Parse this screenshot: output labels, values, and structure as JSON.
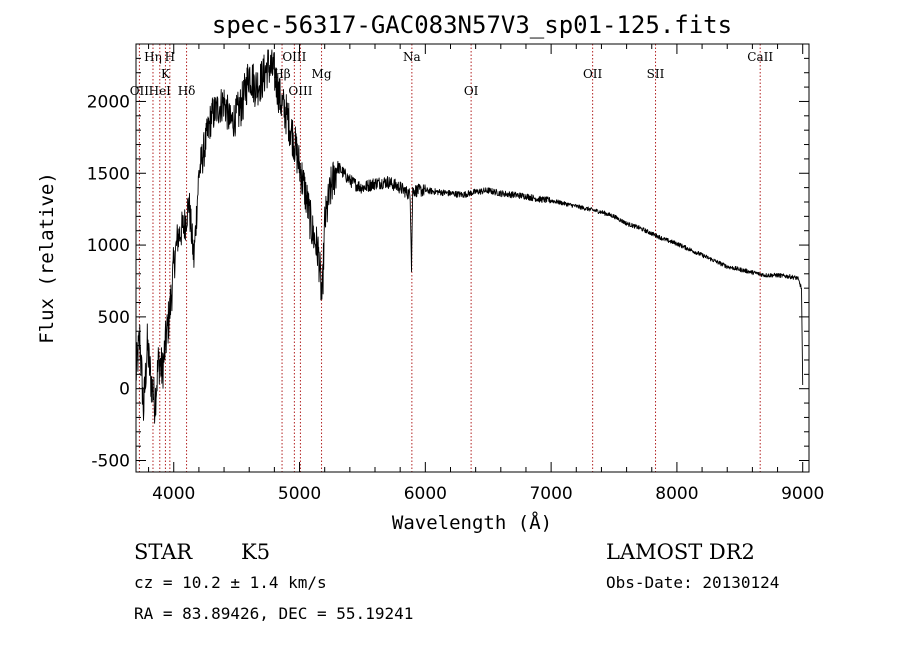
{
  "chart_data": {
    "type": "line",
    "title": "spec-56317-GAC083N57V3_sp01-125.fits",
    "xlabel": "Wavelength (Å)",
    "ylabel": "Flux (relative)",
    "xlim": [
      3700,
      9050
    ],
    "ylim": [
      -580,
      2400
    ],
    "xticks": [
      4000,
      5000,
      6000,
      7000,
      8000,
      9000
    ],
    "yticks": [
      -500,
      0,
      500,
      1000,
      1500,
      2000
    ],
    "series": [
      {
        "name": "spectrum",
        "x": [
          3700,
          3730,
          3760,
          3790,
          3820,
          3850,
          3880,
          3910,
          3940,
          3970,
          4000,
          4030,
          4060,
          4090,
          4120,
          4160,
          4200,
          4250,
          4300,
          4350,
          4400,
          4450,
          4500,
          4550,
          4600,
          4650,
          4700,
          4750,
          4800,
          4850,
          4900,
          4950,
          5000,
          5050,
          5100,
          5150,
          5180,
          5200,
          5250,
          5300,
          5350,
          5400,
          5450,
          5500,
          5600,
          5700,
          5800,
          5880,
          5890,
          5900,
          5950,
          6000,
          6100,
          6200,
          6300,
          6400,
          6500,
          6600,
          6700,
          6800,
          6900,
          7000,
          7100,
          7200,
          7300,
          7400,
          7500,
          7600,
          7700,
          7800,
          7900,
          8000,
          8100,
          8200,
          8300,
          8400,
          8500,
          8600,
          8700,
          8800,
          8900,
          8960,
          8990,
          9000
        ],
        "y": [
          100,
          350,
          -150,
          300,
          50,
          -100,
          200,
          120,
          350,
          550,
          850,
          1050,
          1100,
          1150,
          1300,
          900,
          1500,
          1700,
          1900,
          1950,
          2000,
          1850,
          1900,
          2000,
          2200,
          2100,
          2150,
          2250,
          2200,
          2000,
          1900,
          1750,
          1550,
          1350,
          1100,
          950,
          600,
          1150,
          1400,
          1550,
          1500,
          1450,
          1420,
          1400,
          1430,
          1440,
          1400,
          1350,
          850,
          1380,
          1380,
          1380,
          1370,
          1360,
          1350,
          1370,
          1380,
          1360,
          1350,
          1340,
          1320,
          1310,
          1290,
          1270,
          1250,
          1230,
          1200,
          1150,
          1120,
          1080,
          1040,
          1010,
          970,
          930,
          890,
          850,
          830,
          810,
          790,
          790,
          780,
          770,
          700,
          20
        ]
      }
    ],
    "lines": [
      {
        "label": "OII",
        "x": 3727,
        "level": 3
      },
      {
        "label": "Hη",
        "x": 3835,
        "level": 1
      },
      {
        "label": "HeI",
        "x": 3889,
        "level": 3
      },
      {
        "label": "K",
        "x": 3934,
        "level": 2
      },
      {
        "label": "H",
        "x": 3969,
        "level": 1
      },
      {
        "label": "Hδ",
        "x": 4102,
        "level": 3
      },
      {
        "label": "Hβ",
        "x": 4861,
        "level": 2
      },
      {
        "label": "OIII",
        "x": 4959,
        "level": 1
      },
      {
        "label": "OIII",
        "x": 5007,
        "level": 3
      },
      {
        "label": "Mg",
        "x": 5175,
        "level": 2
      },
      {
        "label": "Na",
        "x": 5893,
        "level": 1
      },
      {
        "label": "OI",
        "x": 6364,
        "level": 3
      },
      {
        "label": "OII",
        "x": 7330,
        "level": 2
      },
      {
        "label": "SII",
        "x": 7830,
        "level": 2
      },
      {
        "label": "CaII",
        "x": 8662,
        "level": 1
      }
    ]
  },
  "info": {
    "type_label": "STAR",
    "subclass": "K5",
    "survey": "LAMOST DR2",
    "cz": "cz = 10.2 ± 1.4 km/s",
    "obs_date": "Obs-Date: 20130124",
    "coords": "RA =  83.89426, DEC =  55.19241"
  }
}
